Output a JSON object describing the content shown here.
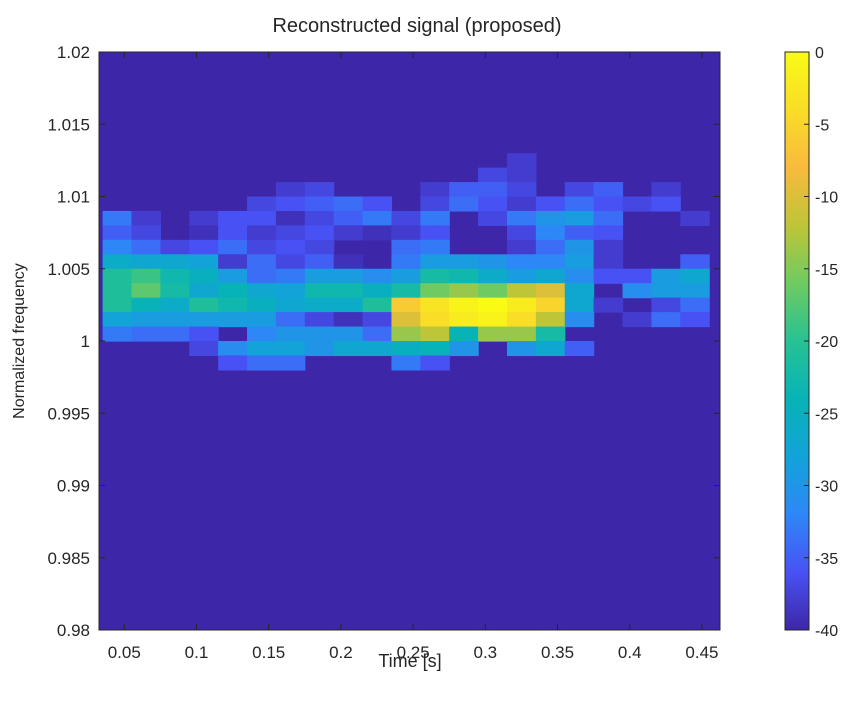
{
  "chart_data": {
    "type": "heatmap",
    "title": "Reconstructed signal (proposed)",
    "xlabel": "Time [s]",
    "ylabel": "Normalized frequency",
    "xlim": [
      0.0325,
      0.4625
    ],
    "ylim": [
      0.98,
      1.02
    ],
    "x_ticks": [
      0.05,
      0.1,
      0.15,
      0.2,
      0.25,
      0.3,
      0.35,
      0.4,
      0.45
    ],
    "x_tick_labels": [
      "0.05",
      "0.1",
      "0.15",
      "0.2",
      "0.25",
      "0.3",
      "0.35",
      "0.4",
      "0.45"
    ],
    "y_ticks": [
      0.98,
      0.985,
      0.99,
      0.995,
      1,
      1.005,
      1.01,
      1.015,
      1.02
    ],
    "y_tick_labels": [
      "0.98",
      "0.985",
      "0.99",
      "0.995",
      "1",
      "1.005",
      "1.01",
      "1.015",
      "1.02"
    ],
    "colorbar": {
      "range": [
        -40,
        0
      ],
      "ticks": [
        0,
        -5,
        -10,
        -15,
        -20,
        -25,
        -30,
        -35,
        -40
      ],
      "tick_labels": [
        "0",
        "-5",
        "-10",
        "-15",
        "-20",
        "-25",
        "-30",
        "-35",
        "-40"
      ]
    },
    "x_centers": [
      0.04,
      0.05,
      0.06,
      0.07,
      0.08,
      0.09,
      0.1,
      0.11,
      0.12,
      0.13,
      0.14,
      0.15,
      0.16,
      0.17,
      0.18,
      0.19,
      0.2,
      0.21,
      0.22,
      0.23,
      0.24,
      0.25,
      0.26,
      0.27,
      0.28,
      0.29,
      0.3,
      0.31,
      0.32,
      0.33,
      0.34,
      0.35,
      0.36,
      0.37,
      0.38,
      0.39,
      0.4,
      0.41,
      0.42,
      0.43,
      0.44,
      0.45
    ],
    "y_rows_top_to_bottom": [
      1.0125,
      1.0115,
      1.0105,
      1.0095,
      1.0085,
      1.0075,
      1.0065,
      1.0055,
      1.0045,
      1.0035,
      1.0025,
      1.0015,
      1.0005,
      0.9995,
      0.9985,
      0.9975,
      0.9965,
      0.9955,
      0.9945,
      0.9935,
      0.9925
    ],
    "z_rows_top_to_bottom": [
      [
        -40,
        -40,
        -40,
        -40,
        -40,
        -40,
        -40,
        -40,
        -40,
        -40,
        -40,
        -40,
        -40,
        -40,
        -40,
        -40,
        -40,
        -40,
        -40,
        -40,
        -40,
        -40,
        -40,
        -40,
        -40,
        -40,
        -40,
        -40,
        -38,
        -38,
        -40,
        -40,
        -40,
        -40,
        -40,
        -40,
        -40,
        -40,
        -40,
        -40,
        -40,
        -40
      ],
      [
        -40,
        -40,
        -40,
        -40,
        -40,
        -40,
        -40,
        -40,
        -40,
        -40,
        -40,
        -40,
        -40,
        -40,
        -40,
        -40,
        -40,
        -40,
        -40,
        -40,
        -40,
        -40,
        -40,
        -40,
        -40,
        -40,
        -37,
        -37,
        -38,
        -38,
        -40,
        -40,
        -40,
        -40,
        -40,
        -40,
        -40,
        -40,
        -40,
        -40,
        -40,
        -40
      ],
      [
        -40,
        -40,
        -40,
        -40,
        -40,
        -40,
        -40,
        -40,
        -40,
        -40,
        -40,
        -40,
        -38,
        -38,
        -37,
        -37,
        -40,
        -40,
        -40,
        -40,
        -40,
        -40,
        -38,
        -38,
        -35,
        -35,
        -35,
        -35,
        -37,
        -37,
        -40,
        -40,
        -37,
        -37,
        -35,
        -35,
        -40,
        -40,
        -38,
        -38,
        -40,
        -40
      ],
      [
        -40,
        -40,
        -40,
        -40,
        -40,
        -40,
        -40,
        -40,
        -40,
        -40,
        -37,
        -37,
        -36,
        -36,
        -35,
        -35,
        -34,
        -34,
        -36,
        -36,
        -40,
        -40,
        -37,
        -37,
        -34,
        -34,
        -36,
        -36,
        -38,
        -38,
        -36,
        -36,
        -34,
        -34,
        -36,
        -36,
        -37,
        -37,
        -36,
        -36,
        -40,
        -40
      ],
      [
        -33,
        -33,
        -38,
        -38,
        -40,
        -40,
        -38,
        -38,
        -36,
        -36,
        -36,
        -36,
        -39,
        -39,
        -37,
        -37,
        -35,
        -35,
        -33,
        -33,
        -37,
        -37,
        -33,
        -33,
        -40,
        -40,
        -37,
        -37,
        -33,
        -33,
        -30,
        -30,
        -29,
        -29,
        -34,
        -34,
        -40,
        -40,
        -40,
        -40,
        -38,
        -38
      ],
      [
        -35,
        -35,
        -37,
        -37,
        -40,
        -40,
        -39,
        -39,
        -36,
        -36,
        -38,
        -38,
        -37,
        -37,
        -36,
        -36,
        -38,
        -38,
        -39,
        -39,
        -38,
        -38,
        -36,
        -36,
        -40,
        -40,
        -40,
        -40,
        -37,
        -37,
        -32,
        -32,
        -35,
        -35,
        -36,
        -36,
        -40,
        -40,
        -40,
        -40,
        -40,
        -40
      ],
      [
        -32,
        -32,
        -34,
        -34,
        -37,
        -37,
        -36,
        -36,
        -34,
        -34,
        -37,
        -37,
        -36,
        -36,
        -37,
        -37,
        -40,
        -40,
        -40,
        -40,
        -34,
        -34,
        -33,
        -33,
        -40,
        -40,
        -40,
        -40,
        -38,
        -38,
        -34,
        -34,
        -30,
        -30,
        -38,
        -38,
        -40,
        -40,
        -40,
        -40,
        -40,
        -40
      ],
      [
        -26,
        -26,
        -27,
        -27,
        -27,
        -27,
        -28,
        -28,
        -38,
        -38,
        -34,
        -34,
        -37,
        -37,
        -35,
        -35,
        -39,
        -39,
        -40,
        -40,
        -33,
        -33,
        -29,
        -29,
        -29,
        -29,
        -30,
        -30,
        -32,
        -32,
        -32,
        -32,
        -29,
        -29,
        -38,
        -38,
        -40,
        -40,
        -40,
        -40,
        -35,
        -35
      ],
      [
        -21,
        -21,
        -19,
        -19,
        -23,
        -23,
        -25,
        -25,
        -29,
        -29,
        -34,
        -34,
        -33,
        -33,
        -29,
        -29,
        -29,
        -29,
        -31,
        -31,
        -29,
        -29,
        -22,
        -22,
        -23,
        -23,
        -26,
        -26,
        -29,
        -29,
        -27,
        -27,
        -31,
        -31,
        -36,
        -36,
        -36,
        -36,
        -29,
        -29,
        -27,
        -27
      ],
      [
        -21,
        -21,
        -17,
        -17,
        -22,
        -22,
        -27,
        -27,
        -24,
        -24,
        -27,
        -27,
        -28,
        -28,
        -23,
        -23,
        -23,
        -23,
        -25,
        -25,
        -22,
        -22,
        -16,
        -16,
        -14,
        -14,
        -16,
        -16,
        -12,
        -12,
        -10,
        -10,
        -27,
        -27,
        -40,
        -40,
        -31,
        -31,
        -29,
        -29,
        -29,
        -29
      ],
      [
        -21,
        -21,
        -24,
        -24,
        -26,
        -26,
        -21,
        -21,
        -23,
        -23,
        -25,
        -25,
        -27,
        -27,
        -26,
        -26,
        -26,
        -26,
        -21,
        -21,
        -6,
        -6,
        -3,
        -3,
        -1,
        -1,
        0,
        0,
        -2,
        -2,
        -5,
        -5,
        -27,
        -27,
        -38,
        -38,
        -40,
        -40,
        -37,
        -37,
        -34,
        -34
      ],
      [
        -28,
        -28,
        -29,
        -29,
        -29,
        -29,
        -29,
        -29,
        -29,
        -29,
        -29,
        -29,
        -34,
        -34,
        -37,
        -37,
        -39,
        -39,
        -37,
        -37,
        -10,
        -10,
        -4,
        -4,
        -2,
        -2,
        -1,
        -1,
        -4,
        -4,
        -12,
        -12,
        -31,
        -31,
        -40,
        -40,
        -38,
        -38,
        -34,
        -34,
        -36,
        -36
      ],
      [
        -33,
        -33,
        -34,
        -34,
        -34,
        -34,
        -36,
        -36,
        -40,
        -40,
        -32,
        -32,
        -30,
        -30,
        -30,
        -30,
        -30,
        -30,
        -34,
        -34,
        -14,
        -14,
        -12,
        -12,
        -24,
        -24,
        -14,
        -14,
        -14,
        -14,
        -22,
        -22,
        -40,
        -40,
        -40,
        -40,
        -40,
        -40,
        -40,
        -40,
        -40,
        -40
      ],
      [
        -40,
        -40,
        -40,
        -40,
        -40,
        -40,
        -37,
        -37,
        -31,
        -31,
        -28,
        -28,
        -28,
        -28,
        -30,
        -30,
        -27,
        -27,
        -27,
        -27,
        -25,
        -25,
        -24,
        -24,
        -30,
        -30,
        -40,
        -40,
        -30,
        -30,
        -27,
        -27,
        -35,
        -35,
        -40,
        -40,
        -40,
        -40,
        -40,
        -40,
        -40,
        -40
      ],
      [
        -40,
        -40,
        -40,
        -40,
        -40,
        -40,
        -40,
        -40,
        -36,
        -36,
        -34,
        -34,
        -34,
        -34,
        -40,
        -40,
        -40,
        -40,
        -40,
        -40,
        -33,
        -33,
        -36,
        -36,
        -40,
        -40,
        -40,
        -40,
        -40,
        -40,
        -40,
        -40,
        -40,
        -40,
        -40,
        -40,
        -40,
        -40,
        -40,
        -40,
        -40,
        -40
      ],
      [
        -40,
        -40,
        -40,
        -40,
        -40,
        -40,
        -40,
        -40,
        -40,
        -40,
        -40,
        -40,
        -40,
        -40,
        -40,
        -40,
        -40,
        -40,
        -40,
        -40,
        -40,
        -40,
        -40,
        -40,
        -40,
        -40,
        -40,
        -40,
        -40,
        -40,
        -40,
        -40,
        -40,
        -40,
        -40,
        -40,
        -40,
        -40,
        -40,
        -40,
        -40,
        -40
      ],
      [
        -40,
        -40,
        -40,
        -40,
        -40,
        -40,
        -40,
        -40,
        -40,
        -40,
        -40,
        -40,
        -40,
        -40,
        -40,
        -40,
        -40,
        -40,
        -40,
        -40,
        -40,
        -40,
        -40,
        -40,
        -40,
        -40,
        -40,
        -40,
        -40,
        -40,
        -40,
        -40,
        -40,
        -40,
        -40,
        -40,
        -40,
        -40,
        -40,
        -40,
        -40,
        -40
      ],
      [
        -40,
        -40,
        -40,
        -40,
        -40,
        -40,
        -40,
        -40,
        -40,
        -40,
        -40,
        -40,
        -40,
        -40,
        -40,
        -40,
        -40,
        -40,
        -40,
        -40,
        -40,
        -40,
        -40,
        -40,
        -40,
        -40,
        -40,
        -40,
        -40,
        -40,
        -40,
        -40,
        -40,
        -40,
        -40,
        -40,
        -40,
        -40,
        -40,
        -40,
        -40,
        -40
      ],
      [
        -40,
        -40,
        -40,
        -40,
        -40,
        -40,
        -40,
        -40,
        -40,
        -40,
        -40,
        -40,
        -40,
        -40,
        -40,
        -40,
        -40,
        -40,
        -40,
        -40,
        -40,
        -40,
        -40,
        -40,
        -40,
        -40,
        -40,
        -40,
        -40,
        -40,
        -40,
        -40,
        -40,
        -40,
        -40,
        -40,
        -40,
        -40,
        -40,
        -40,
        -40,
        -40
      ],
      [
        -40,
        -40,
        -40,
        -40,
        -40,
        -40,
        -40,
        -40,
        -40,
        -40,
        -40,
        -40,
        -40,
        -40,
        -40,
        -40,
        -40,
        -40,
        -40,
        -40,
        -40,
        -40,
        -40,
        -40,
        -40,
        -40,
        -40,
        -40,
        -40,
        -40,
        -40,
        -40,
        -40,
        -40,
        -40,
        -40,
        -40,
        -40,
        -40,
        -40,
        -40,
        -40
      ],
      [
        -40,
        -40,
        -40,
        -40,
        -40,
        -40,
        -40,
        -40,
        -40,
        -40,
        -40,
        -40,
        -40,
        -40,
        -40,
        -40,
        -40,
        -40,
        -40,
        -40,
        -40,
        -40,
        -40,
        -40,
        -40,
        -40,
        -40,
        -40,
        -40,
        -40,
        -40,
        -40,
        -40,
        -40,
        -40,
        -40,
        -40,
        -40,
        -40,
        -40,
        -40,
        -40
      ]
    ],
    "background_value": -40,
    "colormap": "parula",
    "grid": false,
    "legend": "none"
  }
}
